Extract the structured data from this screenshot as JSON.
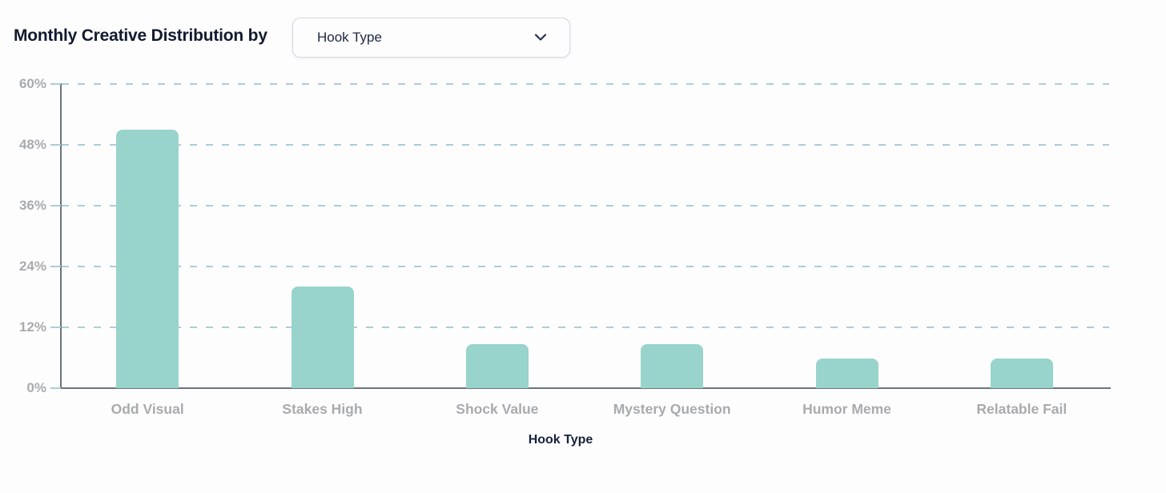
{
  "header": {
    "title": "Monthly Creative Distribution by",
    "dropdown": {
      "value": "Hook Type"
    }
  },
  "chart_data": {
    "type": "bar",
    "title": "Monthly Creative Distribution by Hook Type",
    "categories": [
      "Odd Visual",
      "Stakes High",
      "Shock Value",
      "Mystery Question",
      "Humor Meme",
      "Relatable Fail"
    ],
    "values": [
      51,
      20,
      8.7,
      8.7,
      5.8,
      5.8
    ],
    "xlabel": "Hook Type",
    "ylabel": "",
    "ylim": [
      0,
      60
    ],
    "yticks": [
      0,
      12,
      24,
      36,
      48,
      60
    ],
    "ytick_suffix": "%",
    "grid": "horizontal-dashed",
    "legend": "none"
  },
  "colors": {
    "bar": "#98d4cb",
    "grid": "#adccd8",
    "axis": "#6b757d",
    "muted": "#a8abae",
    "titlec": "#121a2e",
    "ddborder": "#d6d9de",
    "ddbg": "#fdfdfe",
    "navy": "#1c2740"
  }
}
